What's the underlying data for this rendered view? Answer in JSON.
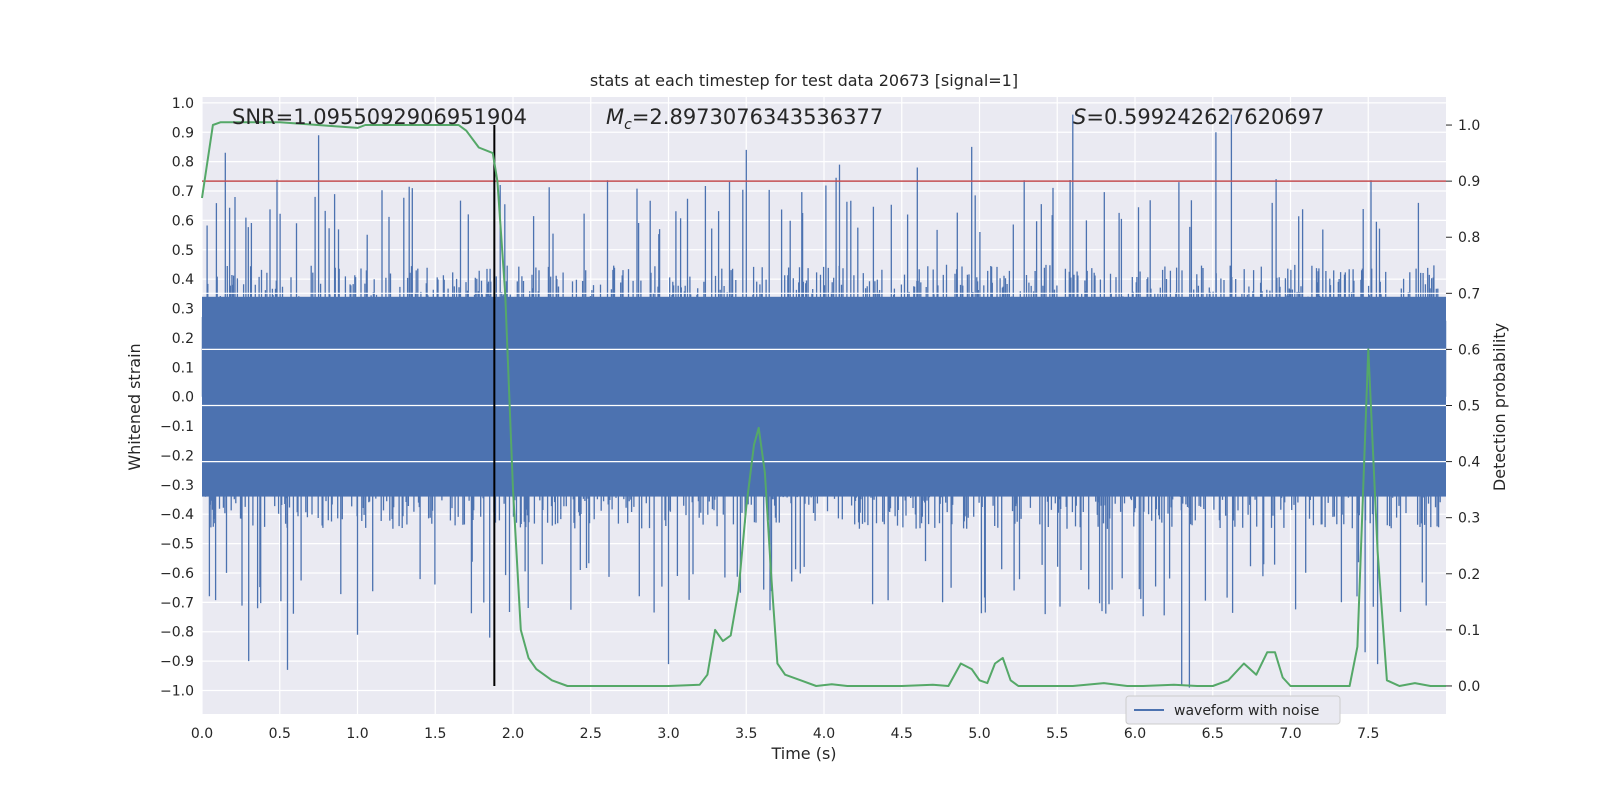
{
  "chart_data": {
    "type": "line",
    "title": "stats at each timestep for test data 20673 [signal=1]",
    "xlabel": "Time (s)",
    "ylabel_left": "Whitened strain",
    "ylabel_right": "Detection probability",
    "xlim": [
      0,
      8
    ],
    "ylim_left": [
      -1.08,
      1.02
    ],
    "ylim_right": [
      -0.05,
      1.05
    ],
    "x_ticks": [
      "0.0",
      "0.5",
      "1.0",
      "1.5",
      "2.0",
      "2.5",
      "3.0",
      "3.5",
      "4.0",
      "4.5",
      "5.0",
      "5.5",
      "6.0",
      "6.5",
      "7.0",
      "7.5"
    ],
    "y_ticks_left": [
      "1.0",
      "0.9",
      "0.8",
      "0.7",
      "0.6",
      "0.5",
      "0.4",
      "0.3",
      "0.2",
      "0.1",
      "0.0",
      "−0.1",
      "−0.2",
      "−0.3",
      "−0.4",
      "−0.5",
      "−0.6",
      "−0.7",
      "−0.8",
      "−0.9",
      "−1.0"
    ],
    "y_ticks_right": [
      "1.0",
      "0.9",
      "0.8",
      "0.7",
      "0.6",
      "0.5",
      "0.4",
      "0.3",
      "0.2",
      "0.1",
      "0.0"
    ],
    "annotations": {
      "snr": "SNR=1.0955092906951904",
      "mc_symbol": "M",
      "mc_sub": "c",
      "mc_value": "=2.8973076343536377",
      "s_symbol": "S",
      "s_value": "=0.599242627620697"
    },
    "legend": {
      "label": "waveform with noise",
      "placement": "lower-right"
    },
    "threshold_line": {
      "axis": "right",
      "value": 0.9,
      "color": "#c44e52"
    },
    "marker_line": {
      "x": 1.88,
      "color": "#000000"
    },
    "series": [
      {
        "name": "waveform with noise",
        "color": "#4c72b0",
        "axis": "left",
        "envelope_typical": 0.45,
        "notable_spikes": [
          [
            0.15,
            0.83
          ],
          [
            0.3,
            -0.9
          ],
          [
            0.55,
            -0.93
          ],
          [
            0.75,
            0.89
          ],
          [
            1.0,
            -0.81
          ],
          [
            1.85,
            -0.82
          ],
          [
            3.0,
            -0.91
          ],
          [
            3.5,
            0.84
          ],
          [
            4.1,
            0.79
          ],
          [
            4.6,
            0.78
          ],
          [
            4.95,
            0.85
          ],
          [
            5.6,
            0.96
          ],
          [
            6.3,
            -0.98
          ],
          [
            6.35,
            -0.99
          ],
          [
            6.52,
            0.9
          ],
          [
            6.62,
            0.96
          ],
          [
            7.48,
            -0.87
          ],
          [
            7.56,
            -0.91
          ]
        ]
      },
      {
        "name": "",
        "color": "#55a868",
        "axis": "right",
        "x": [
          0.0,
          0.07,
          0.12,
          0.5,
          1.0,
          1.05,
          1.2,
          1.5,
          1.65,
          1.7,
          1.78,
          1.87,
          1.9,
          1.95,
          2.0,
          2.05,
          2.1,
          2.15,
          2.25,
          2.35,
          2.5,
          3.0,
          3.2,
          3.25,
          3.3,
          3.35,
          3.4,
          3.45,
          3.5,
          3.55,
          3.58,
          3.62,
          3.66,
          3.7,
          3.75,
          3.85,
          3.95,
          4.05,
          4.15,
          4.3,
          4.5,
          4.7,
          4.8,
          4.88,
          4.95,
          5.0,
          5.05,
          5.1,
          5.15,
          5.2,
          5.25,
          5.3,
          5.4,
          5.6,
          5.8,
          5.95,
          6.05,
          6.25,
          6.4,
          6.5,
          6.6,
          6.7,
          6.78,
          6.85,
          6.9,
          6.95,
          7.0,
          7.05,
          7.2,
          7.38,
          7.43,
          7.5,
          7.56,
          7.62,
          7.7,
          7.8,
          7.9,
          8.0
        ],
        "y": [
          0.87,
          1.0,
          1.005,
          1.005,
          0.995,
          1.0,
          1.0,
          1.0,
          1.0,
          0.99,
          0.96,
          0.95,
          0.9,
          0.7,
          0.35,
          0.1,
          0.05,
          0.03,
          0.01,
          0.0,
          0.0,
          0.0,
          0.002,
          0.02,
          0.1,
          0.08,
          0.09,
          0.17,
          0.32,
          0.43,
          0.46,
          0.38,
          0.2,
          0.04,
          0.02,
          0.01,
          0.0,
          0.003,
          0.0,
          0.0,
          0.0,
          0.002,
          0.0,
          0.04,
          0.03,
          0.01,
          0.005,
          0.04,
          0.05,
          0.01,
          0.0,
          0.0,
          0.0,
          0.0,
          0.005,
          0.0,
          0.0,
          0.002,
          0.0,
          0.0,
          0.01,
          0.04,
          0.02,
          0.06,
          0.06,
          0.015,
          0.0,
          0.0,
          0.0,
          0.0,
          0.07,
          0.6,
          0.24,
          0.01,
          0.0,
          0.005,
          0.0,
          0.0
        ]
      }
    ]
  }
}
